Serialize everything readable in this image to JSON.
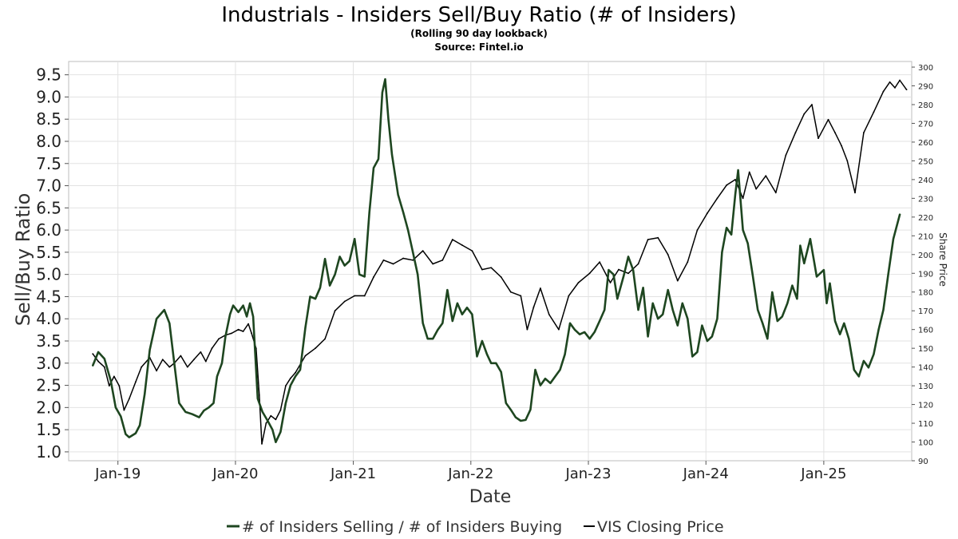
{
  "chart_data": {
    "type": "line",
    "title": "Industrials - Insiders Sell/Buy Ratio (# of Insiders)",
    "subtitles": [
      "(Rolling 90 day lookback)",
      "Source: Fintel.io"
    ],
    "xlabel": "Date",
    "ylabel": "Sell/Buy Ratio",
    "ylabel_right": "Share Price",
    "x_ticks": [
      "Jan-19",
      "Jan-20",
      "Jan-21",
      "Jan-22",
      "Jan-23",
      "Jan-24",
      "Jan-25"
    ],
    "x_range": [
      "2018-08-01",
      "2025-10-01"
    ],
    "y_ticks_left": [
      "1.0",
      "1.5",
      "2.0",
      "2.5",
      "3.0",
      "3.5",
      "4.0",
      "4.5",
      "5.0",
      "5.5",
      "6.0",
      "6.5",
      "7.0",
      "7.5",
      "8.0",
      "8.5",
      "9.0",
      "9.5"
    ],
    "ylim_left": [
      0.8,
      9.8
    ],
    "y_ticks_right": [
      "90",
      "100",
      "110",
      "120",
      "130",
      "140",
      "150",
      "160",
      "170",
      "180",
      "190",
      "200",
      "210",
      "220",
      "230",
      "240",
      "250",
      "260",
      "270",
      "280",
      "290",
      "300"
    ],
    "ylim_right": [
      90,
      303
    ],
    "grid": true,
    "legend_position": "bottom",
    "series": [
      {
        "name": "# of Insiders Selling / # of Insiders Buying",
        "axis": "left",
        "color": "#1e4620",
        "points": [
          [
            "2018-10-15",
            2.95
          ],
          [
            "2018-11-01",
            3.25
          ],
          [
            "2018-11-20",
            3.1
          ],
          [
            "2018-12-10",
            2.6
          ],
          [
            "2018-12-25",
            2.0
          ],
          [
            "2019-01-10",
            1.8
          ],
          [
            "2019-01-25",
            1.4
          ],
          [
            "2019-02-05",
            1.33
          ],
          [
            "2019-02-25",
            1.42
          ],
          [
            "2019-03-10",
            1.6
          ],
          [
            "2019-03-25",
            2.3
          ],
          [
            "2019-04-10",
            3.3
          ],
          [
            "2019-05-01",
            4.0
          ],
          [
            "2019-05-25",
            4.2
          ],
          [
            "2019-06-10",
            3.9
          ],
          [
            "2019-06-25",
            3.0
          ],
          [
            "2019-07-10",
            2.1
          ],
          [
            "2019-07-30",
            1.9
          ],
          [
            "2019-08-20",
            1.85
          ],
          [
            "2019-09-10",
            1.78
          ],
          [
            "2019-09-25",
            1.93
          ],
          [
            "2019-10-10",
            2.0
          ],
          [
            "2019-10-25",
            2.1
          ],
          [
            "2019-11-05",
            2.7
          ],
          [
            "2019-11-20",
            3.0
          ],
          [
            "2019-12-01",
            3.6
          ],
          [
            "2019-12-15",
            4.1
          ],
          [
            "2019-12-25",
            4.3
          ],
          [
            "2020-01-10",
            4.15
          ],
          [
            "2020-01-25",
            4.3
          ],
          [
            "2020-02-05",
            4.05
          ],
          [
            "2020-02-15",
            4.35
          ],
          [
            "2020-02-25",
            4.05
          ],
          [
            "2020-03-10",
            2.2
          ],
          [
            "2020-03-25",
            1.9
          ],
          [
            "2020-04-10",
            1.7
          ],
          [
            "2020-04-25",
            1.5
          ],
          [
            "2020-05-05",
            1.22
          ],
          [
            "2020-05-20",
            1.45
          ],
          [
            "2020-06-05",
            2.1
          ],
          [
            "2020-06-20",
            2.5
          ],
          [
            "2020-07-05",
            2.7
          ],
          [
            "2020-07-20",
            2.85
          ],
          [
            "2020-08-05",
            3.8
          ],
          [
            "2020-08-20",
            4.5
          ],
          [
            "2020-09-05",
            4.45
          ],
          [
            "2020-09-20",
            4.7
          ],
          [
            "2020-10-05",
            5.35
          ],
          [
            "2020-10-20",
            4.75
          ],
          [
            "2020-11-05",
            5.0
          ],
          [
            "2020-11-20",
            5.4
          ],
          [
            "2020-12-05",
            5.2
          ],
          [
            "2020-12-20",
            5.3
          ],
          [
            "2021-01-05",
            5.8
          ],
          [
            "2021-01-20",
            5.0
          ],
          [
            "2021-02-05",
            4.95
          ],
          [
            "2021-02-20",
            6.4
          ],
          [
            "2021-03-05",
            7.4
          ],
          [
            "2021-03-20",
            7.6
          ],
          [
            "2021-04-01",
            9.1
          ],
          [
            "2021-04-10",
            9.4
          ],
          [
            "2021-04-20",
            8.5
          ],
          [
            "2021-05-01",
            7.7
          ],
          [
            "2021-05-20",
            6.8
          ],
          [
            "2021-06-05",
            6.4
          ],
          [
            "2021-06-20",
            6.0
          ],
          [
            "2021-07-05",
            5.5
          ],
          [
            "2021-07-20",
            5.0
          ],
          [
            "2021-08-05",
            3.9
          ],
          [
            "2021-08-20",
            3.55
          ],
          [
            "2021-09-05",
            3.55
          ],
          [
            "2021-09-20",
            3.75
          ],
          [
            "2021-10-05",
            3.9
          ],
          [
            "2021-10-20",
            4.65
          ],
          [
            "2021-11-05",
            3.95
          ],
          [
            "2021-11-20",
            4.35
          ],
          [
            "2021-12-05",
            4.1
          ],
          [
            "2021-12-20",
            4.25
          ],
          [
            "2022-01-05",
            4.1
          ],
          [
            "2022-01-20",
            3.15
          ],
          [
            "2022-02-05",
            3.5
          ],
          [
            "2022-02-20",
            3.2
          ],
          [
            "2022-03-05",
            3.0
          ],
          [
            "2022-03-20",
            3.0
          ],
          [
            "2022-04-05",
            2.8
          ],
          [
            "2022-04-20",
            2.1
          ],
          [
            "2022-05-05",
            1.95
          ],
          [
            "2022-05-20",
            1.78
          ],
          [
            "2022-06-05",
            1.7
          ],
          [
            "2022-06-20",
            1.72
          ],
          [
            "2022-07-05",
            1.95
          ],
          [
            "2022-07-20",
            2.85
          ],
          [
            "2022-08-05",
            2.5
          ],
          [
            "2022-08-20",
            2.65
          ],
          [
            "2022-09-05",
            2.55
          ],
          [
            "2022-09-20",
            2.7
          ],
          [
            "2022-10-05",
            2.85
          ],
          [
            "2022-10-20",
            3.2
          ],
          [
            "2022-11-05",
            3.9
          ],
          [
            "2022-11-20",
            3.75
          ],
          [
            "2022-12-05",
            3.65
          ],
          [
            "2022-12-20",
            3.7
          ],
          [
            "2023-01-05",
            3.55
          ],
          [
            "2023-01-20",
            3.7
          ],
          [
            "2023-02-05",
            3.95
          ],
          [
            "2023-02-20",
            4.2
          ],
          [
            "2023-03-05",
            5.1
          ],
          [
            "2023-03-20",
            5.0
          ],
          [
            "2023-04-01",
            4.45
          ],
          [
            "2023-04-20",
            4.95
          ],
          [
            "2023-05-05",
            5.4
          ],
          [
            "2023-05-20",
            5.1
          ],
          [
            "2023-06-05",
            4.2
          ],
          [
            "2023-06-20",
            4.7
          ],
          [
            "2023-07-05",
            3.6
          ],
          [
            "2023-07-20",
            4.35
          ],
          [
            "2023-08-05",
            4.0
          ],
          [
            "2023-08-20",
            4.1
          ],
          [
            "2023-09-05",
            4.65
          ],
          [
            "2023-09-20",
            4.2
          ],
          [
            "2023-10-05",
            3.85
          ],
          [
            "2023-10-20",
            4.35
          ],
          [
            "2023-11-05",
            4.0
          ],
          [
            "2023-11-20",
            3.15
          ],
          [
            "2023-12-05",
            3.25
          ],
          [
            "2023-12-20",
            3.85
          ],
          [
            "2024-01-05",
            3.5
          ],
          [
            "2024-01-20",
            3.6
          ],
          [
            "2024-02-05",
            4.0
          ],
          [
            "2024-02-20",
            5.5
          ],
          [
            "2024-03-05",
            6.05
          ],
          [
            "2024-03-20",
            5.9
          ],
          [
            "2024-04-01",
            6.8
          ],
          [
            "2024-04-10",
            7.35
          ],
          [
            "2024-04-25",
            6.0
          ],
          [
            "2024-05-10",
            5.7
          ],
          [
            "2024-05-25",
            5.0
          ],
          [
            "2024-06-10",
            4.2
          ],
          [
            "2024-06-25",
            3.9
          ],
          [
            "2024-07-10",
            3.55
          ],
          [
            "2024-07-25",
            4.6
          ],
          [
            "2024-08-10",
            3.95
          ],
          [
            "2024-08-25",
            4.05
          ],
          [
            "2024-09-10",
            4.35
          ],
          [
            "2024-09-25",
            4.75
          ],
          [
            "2024-10-10",
            4.45
          ],
          [
            "2024-10-20",
            5.65
          ],
          [
            "2024-11-01",
            5.25
          ],
          [
            "2024-11-20",
            5.8
          ],
          [
            "2024-12-10",
            4.95
          ],
          [
            "2025-01-01",
            5.1
          ],
          [
            "2025-01-10",
            4.35
          ],
          [
            "2025-01-20",
            4.8
          ],
          [
            "2025-02-05",
            3.95
          ],
          [
            "2025-02-20",
            3.65
          ],
          [
            "2025-03-05",
            3.9
          ],
          [
            "2025-03-20",
            3.55
          ],
          [
            "2025-04-05",
            2.85
          ],
          [
            "2025-04-20",
            2.7
          ],
          [
            "2025-05-05",
            3.05
          ],
          [
            "2025-05-20",
            2.9
          ],
          [
            "2025-06-05",
            3.2
          ],
          [
            "2025-06-20",
            3.75
          ],
          [
            "2025-07-05",
            4.2
          ],
          [
            "2025-07-20",
            5.0
          ],
          [
            "2025-08-05",
            5.8
          ],
          [
            "2025-08-25",
            6.35
          ]
        ]
      },
      {
        "name": "VIS Closing Price",
        "axis": "right",
        "color": "#000000",
        "points": [
          [
            "2018-10-15",
            147
          ],
          [
            "2018-11-01",
            143
          ],
          [
            "2018-11-20",
            140
          ],
          [
            "2018-12-05",
            130
          ],
          [
            "2018-12-20",
            135
          ],
          [
            "2019-01-05",
            130
          ],
          [
            "2019-01-20",
            117
          ],
          [
            "2019-02-05",
            123
          ],
          [
            "2019-02-25",
            132
          ],
          [
            "2019-03-15",
            140
          ],
          [
            "2019-04-10",
            145
          ],
          [
            "2019-05-01",
            138
          ],
          [
            "2019-05-20",
            144
          ],
          [
            "2019-06-10",
            140
          ],
          [
            "2019-06-25",
            142
          ],
          [
            "2019-07-15",
            146
          ],
          [
            "2019-08-05",
            140
          ],
          [
            "2019-08-25",
            144
          ],
          [
            "2019-09-15",
            148
          ],
          [
            "2019-10-01",
            143
          ],
          [
            "2019-10-20",
            150
          ],
          [
            "2019-11-10",
            155
          ],
          [
            "2019-12-01",
            157
          ],
          [
            "2019-12-20",
            158
          ],
          [
            "2020-01-10",
            160
          ],
          [
            "2020-01-25",
            159
          ],
          [
            "2020-02-10",
            163
          ],
          [
            "2020-02-20",
            158
          ],
          [
            "2020-03-05",
            150
          ],
          [
            "2020-03-15",
            125
          ],
          [
            "2020-03-23",
            99
          ],
          [
            "2020-04-05",
            110
          ],
          [
            "2020-04-20",
            114
          ],
          [
            "2020-05-05",
            112
          ],
          [
            "2020-05-20",
            117
          ],
          [
            "2020-06-05",
            130
          ],
          [
            "2020-06-20",
            134
          ],
          [
            "2020-07-05",
            137
          ],
          [
            "2020-08-05",
            146
          ],
          [
            "2020-09-05",
            150
          ],
          [
            "2020-10-05",
            155
          ],
          [
            "2020-11-05",
            170
          ],
          [
            "2020-12-05",
            175
          ],
          [
            "2021-01-05",
            178
          ],
          [
            "2021-02-05",
            178
          ],
          [
            "2021-03-05",
            188
          ],
          [
            "2021-04-05",
            197
          ],
          [
            "2021-05-05",
            195
          ],
          [
            "2021-06-05",
            198
          ],
          [
            "2021-07-05",
            197
          ],
          [
            "2021-08-05",
            202
          ],
          [
            "2021-09-05",
            195
          ],
          [
            "2021-10-05",
            197
          ],
          [
            "2021-11-05",
            208
          ],
          [
            "2021-12-05",
            205
          ],
          [
            "2022-01-05",
            202
          ],
          [
            "2022-02-05",
            192
          ],
          [
            "2022-03-05",
            193
          ],
          [
            "2022-04-05",
            188
          ],
          [
            "2022-05-05",
            180
          ],
          [
            "2022-06-05",
            178
          ],
          [
            "2022-06-25",
            160
          ],
          [
            "2022-07-15",
            172
          ],
          [
            "2022-08-05",
            182
          ],
          [
            "2022-09-01",
            168
          ],
          [
            "2022-10-01",
            160
          ],
          [
            "2022-11-01",
            178
          ],
          [
            "2022-12-01",
            185
          ],
          [
            "2023-01-05",
            190
          ],
          [
            "2023-02-05",
            196
          ],
          [
            "2023-03-10",
            185
          ],
          [
            "2023-04-05",
            192
          ],
          [
            "2023-05-05",
            190
          ],
          [
            "2023-06-05",
            195
          ],
          [
            "2023-07-05",
            208
          ],
          [
            "2023-08-05",
            209
          ],
          [
            "2023-09-05",
            200
          ],
          [
            "2023-10-05",
            186
          ],
          [
            "2023-11-05",
            196
          ],
          [
            "2023-12-05",
            213
          ],
          [
            "2024-01-05",
            222
          ],
          [
            "2024-02-05",
            230
          ],
          [
            "2024-03-05",
            237
          ],
          [
            "2024-04-01",
            240
          ],
          [
            "2024-04-25",
            230
          ],
          [
            "2024-05-15",
            244
          ],
          [
            "2024-06-05",
            235
          ],
          [
            "2024-07-05",
            242
          ],
          [
            "2024-08-05",
            233
          ],
          [
            "2024-09-05",
            253
          ],
          [
            "2024-10-05",
            265
          ],
          [
            "2024-11-01",
            275
          ],
          [
            "2024-11-25",
            280
          ],
          [
            "2024-12-15",
            262
          ],
          [
            "2025-01-15",
            272
          ],
          [
            "2025-02-05",
            265
          ],
          [
            "2025-02-25",
            258
          ],
          [
            "2025-03-15",
            250
          ],
          [
            "2025-04-08",
            233
          ],
          [
            "2025-05-05",
            265
          ],
          [
            "2025-06-05",
            276
          ],
          [
            "2025-07-05",
            287
          ],
          [
            "2025-07-25",
            292
          ],
          [
            "2025-08-10",
            289
          ],
          [
            "2025-08-25",
            293
          ],
          [
            "2025-09-15",
            288
          ]
        ]
      }
    ]
  }
}
